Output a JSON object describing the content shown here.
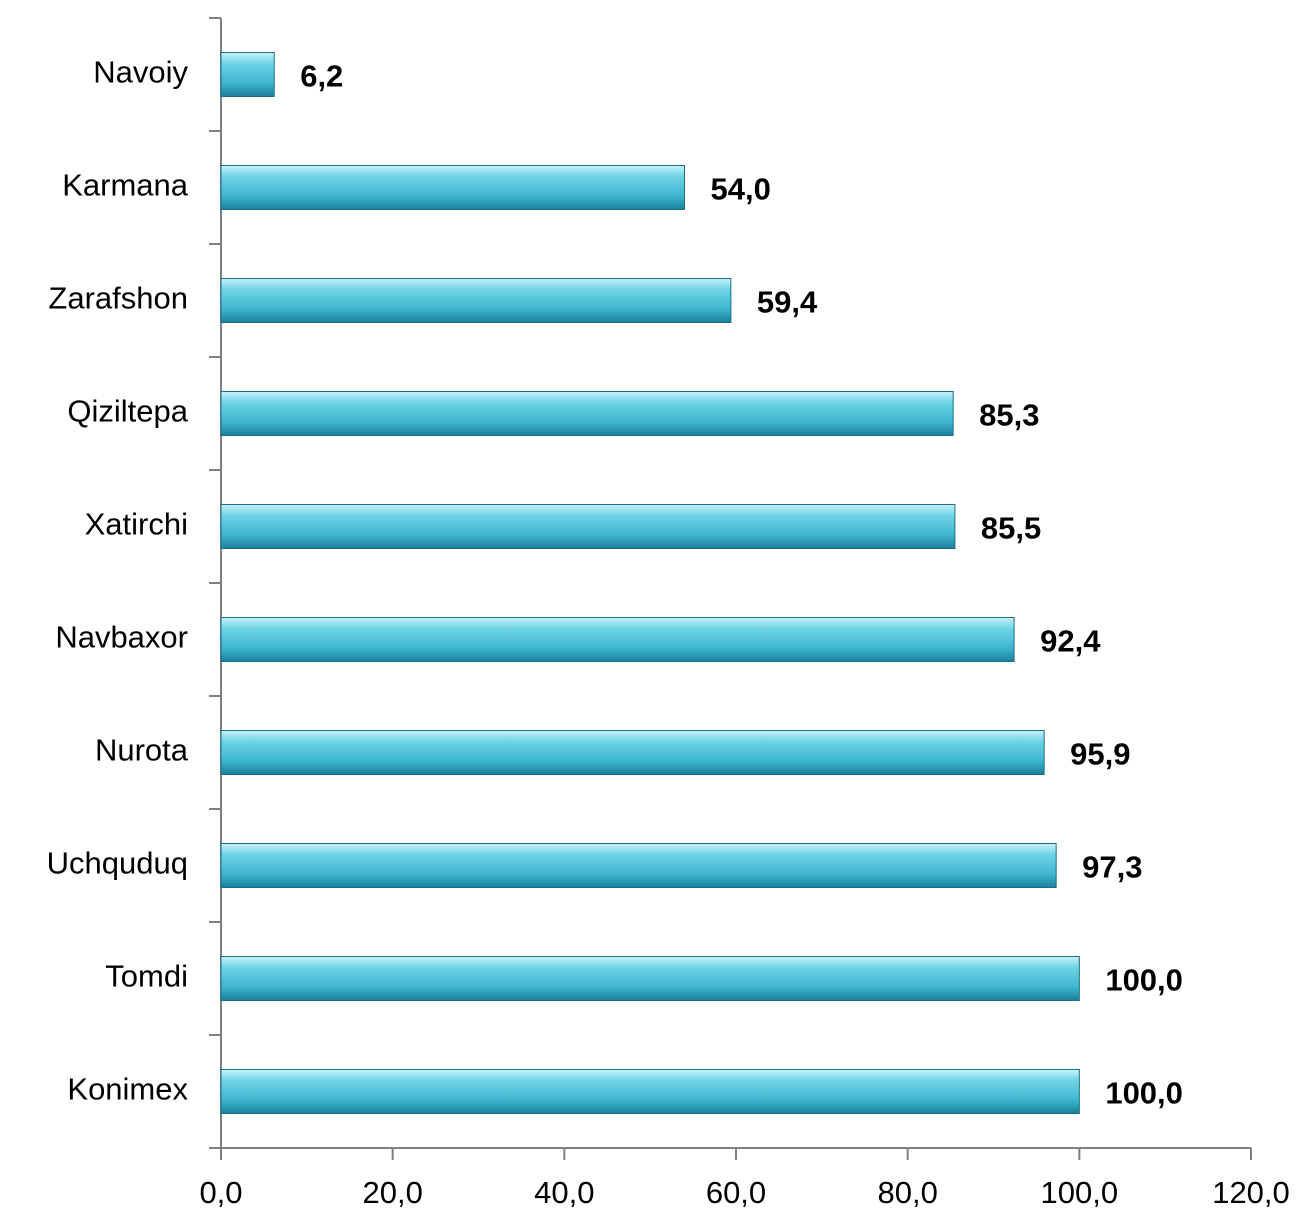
{
  "chart_data": {
    "type": "barh",
    "categories": [
      "Navoiy",
      "Karmana",
      "Zarafshon",
      "Qiziltepa",
      "Xatirchi",
      "Navbaxor",
      "Nurota",
      "Uchquduq",
      "Tomdi",
      "Konimex"
    ],
    "values": [
      6.2,
      54.0,
      59.4,
      85.3,
      85.5,
      92.4,
      95.9,
      97.3,
      100.0,
      100.0
    ],
    "value_labels": [
      "6,2",
      "54,0",
      "59,4",
      "85,3",
      "85,5",
      "92,4",
      "95,9",
      "97,3",
      "100,0",
      "100,0"
    ],
    "color": "#3db5cf",
    "xlim": [
      0,
      120
    ],
    "xticks": [
      {
        "value": 0,
        "label": "0,0"
      },
      {
        "value": 20,
        "label": "20,0"
      },
      {
        "value": 40,
        "label": "40,0"
      },
      {
        "value": 60,
        "label": "60,0"
      },
      {
        "value": 80,
        "label": "80,0"
      },
      {
        "value": 100,
        "label": "100,0"
      },
      {
        "value": 120,
        "label": "120,0"
      }
    ]
  }
}
